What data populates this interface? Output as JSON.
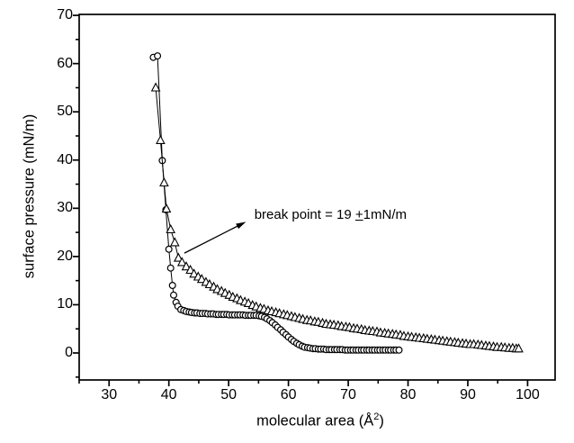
{
  "chart_data": {
    "type": "line",
    "title": "",
    "xlabel_main": "molecular area (Å",
    "xlabel_sup": "2",
    "xlabel_close": ")",
    "ylabel": "surface pressure (mN/m)",
    "xlim": [
      25,
      104.6
    ],
    "ylim": [
      -5.6,
      70.2
    ],
    "x_major_ticks": [
      30,
      40,
      50,
      60,
      70,
      80,
      90,
      100
    ],
    "x_minor_ticks": [
      25,
      35,
      45,
      55,
      65,
      75,
      85,
      95
    ],
    "y_major_ticks": [
      0,
      10,
      20,
      30,
      40,
      50,
      60,
      70
    ],
    "y_minor_ticks": [
      -5,
      5,
      15,
      25,
      35,
      45,
      55,
      65
    ],
    "grid": false,
    "legend_position": "none",
    "colors": {
      "line": "#000000",
      "marker_fill": "#ffffff",
      "background": "#ffffff"
    },
    "annotation": {
      "prefix": "break point = 19 ",
      "plusminus": "+",
      "suffix": "1mN/m",
      "arrow_tail": [
        42.6,
        20.7
      ],
      "arrow_head": [
        52.9,
        27.2
      ],
      "text_pos": [
        54.3,
        28.6
      ]
    },
    "series": [
      {
        "name": "circles",
        "marker": "circle",
        "points": [
          [
            37.4,
            61.3
          ],
          [
            38.1,
            61.6
          ],
          [
            38.9,
            39.9
          ],
          [
            39.5,
            29.7
          ],
          [
            40.0,
            21.5
          ],
          [
            40.3,
            17.6
          ],
          [
            40.6,
            14.0
          ],
          [
            40.8,
            12.0
          ],
          [
            41.2,
            10.5
          ],
          [
            41.5,
            9.7
          ],
          [
            42.0,
            9.0
          ],
          [
            42.5,
            8.8
          ],
          [
            42.9,
            8.6
          ],
          [
            43.4,
            8.5
          ],
          [
            43.8,
            8.4
          ],
          [
            44.3,
            8.3
          ],
          [
            44.7,
            8.3
          ],
          [
            45.2,
            8.2
          ],
          [
            45.6,
            8.2
          ],
          [
            46.1,
            8.2
          ],
          [
            46.5,
            8.1
          ],
          [
            47.0,
            8.1
          ],
          [
            47.4,
            8.1
          ],
          [
            47.9,
            8.0
          ],
          [
            48.3,
            8.0
          ],
          [
            48.8,
            8.0
          ],
          [
            49.2,
            8.0
          ],
          [
            49.7,
            8.0
          ],
          [
            50.1,
            7.9
          ],
          [
            50.6,
            7.9
          ],
          [
            51.0,
            7.9
          ],
          [
            51.5,
            7.9
          ],
          [
            51.9,
            7.9
          ],
          [
            52.4,
            7.9
          ],
          [
            52.8,
            7.8
          ],
          [
            53.3,
            7.8
          ],
          [
            53.7,
            7.8
          ],
          [
            54.2,
            7.8
          ],
          [
            54.6,
            7.8
          ],
          [
            55.1,
            7.7
          ],
          [
            55.5,
            7.6
          ],
          [
            56.0,
            7.4
          ],
          [
            56.4,
            7.1
          ],
          [
            56.9,
            6.7
          ],
          [
            57.3,
            6.3
          ],
          [
            57.8,
            5.8
          ],
          [
            58.2,
            5.3
          ],
          [
            58.7,
            4.8
          ],
          [
            59.1,
            4.3
          ],
          [
            59.6,
            3.8
          ],
          [
            60.0,
            3.3
          ],
          [
            60.5,
            2.8
          ],
          [
            60.9,
            2.4
          ],
          [
            61.4,
            2.0
          ],
          [
            61.8,
            1.7
          ],
          [
            62.3,
            1.4
          ],
          [
            62.7,
            1.2
          ],
          [
            63.2,
            1.1
          ],
          [
            63.6,
            1.0
          ],
          [
            64.1,
            0.9
          ],
          [
            64.5,
            0.9
          ],
          [
            65.0,
            0.8
          ],
          [
            65.4,
            0.8
          ],
          [
            65.9,
            0.8
          ],
          [
            66.3,
            0.7
          ],
          [
            66.8,
            0.7
          ],
          [
            67.2,
            0.7
          ],
          [
            67.7,
            0.7
          ],
          [
            68.1,
            0.7
          ],
          [
            68.6,
            0.7
          ],
          [
            69.0,
            0.7
          ],
          [
            69.5,
            0.6
          ],
          [
            69.9,
            0.6
          ],
          [
            70.4,
            0.6
          ],
          [
            70.8,
            0.6
          ],
          [
            71.3,
            0.6
          ],
          [
            71.7,
            0.6
          ],
          [
            72.2,
            0.6
          ],
          [
            72.6,
            0.6
          ],
          [
            73.1,
            0.6
          ],
          [
            73.5,
            0.6
          ],
          [
            74.0,
            0.6
          ],
          [
            74.4,
            0.6
          ],
          [
            74.9,
            0.6
          ],
          [
            75.3,
            0.6
          ],
          [
            75.8,
            0.6
          ],
          [
            76.2,
            0.6
          ],
          [
            76.7,
            0.6
          ],
          [
            77.1,
            0.6
          ],
          [
            77.6,
            0.6
          ],
          [
            78.0,
            0.6
          ],
          [
            78.5,
            0.6
          ]
        ]
      },
      {
        "name": "triangles",
        "marker": "triangle",
        "points": [
          [
            37.8,
            55.0
          ],
          [
            38.6,
            44.1
          ],
          [
            39.2,
            35.3
          ],
          [
            39.6,
            29.9
          ],
          [
            40.3,
            25.6
          ],
          [
            41.0,
            22.9
          ],
          [
            41.6,
            19.7
          ],
          [
            42.2,
            18.8
          ],
          [
            42.9,
            17.9
          ],
          [
            43.6,
            17.2
          ],
          [
            44.2,
            16.4
          ],
          [
            44.9,
            15.8
          ],
          [
            45.5,
            15.3
          ],
          [
            46.2,
            14.7
          ],
          [
            46.8,
            14.2
          ],
          [
            47.5,
            13.7
          ],
          [
            48.1,
            13.2
          ],
          [
            48.8,
            12.8
          ],
          [
            49.4,
            12.4
          ],
          [
            50.1,
            12.0
          ],
          [
            50.7,
            11.6
          ],
          [
            51.4,
            11.3
          ],
          [
            52.0,
            10.9
          ],
          [
            52.7,
            10.6
          ],
          [
            53.3,
            10.3
          ],
          [
            54.0,
            9.9
          ],
          [
            54.6,
            9.6
          ],
          [
            55.3,
            9.3
          ],
          [
            55.9,
            9.1
          ],
          [
            56.6,
            8.8
          ],
          [
            57.2,
            8.6
          ],
          [
            57.9,
            8.4
          ],
          [
            58.5,
            8.2
          ],
          [
            59.2,
            8.0
          ],
          [
            59.8,
            7.8
          ],
          [
            60.5,
            7.6
          ],
          [
            61.1,
            7.4
          ],
          [
            61.8,
            7.2
          ],
          [
            62.4,
            7.0
          ],
          [
            63.1,
            6.8
          ],
          [
            63.7,
            6.7
          ],
          [
            64.4,
            6.5
          ],
          [
            65.0,
            6.4
          ],
          [
            65.7,
            6.2
          ],
          [
            66.3,
            6.0
          ],
          [
            67.0,
            5.9
          ],
          [
            67.6,
            5.8
          ],
          [
            68.3,
            5.7
          ],
          [
            68.9,
            5.5
          ],
          [
            69.6,
            5.4
          ],
          [
            70.2,
            5.3
          ],
          [
            70.9,
            5.1
          ],
          [
            71.5,
            5.0
          ],
          [
            72.2,
            4.9
          ],
          [
            72.8,
            4.7
          ],
          [
            73.5,
            4.6
          ],
          [
            74.1,
            4.5
          ],
          [
            74.8,
            4.4
          ],
          [
            75.4,
            4.2
          ],
          [
            76.1,
            4.1
          ],
          [
            76.7,
            4.0
          ],
          [
            77.4,
            3.9
          ],
          [
            78.0,
            3.8
          ],
          [
            78.7,
            3.7
          ],
          [
            79.3,
            3.5
          ],
          [
            80.0,
            3.4
          ],
          [
            80.6,
            3.3
          ],
          [
            81.3,
            3.2
          ],
          [
            81.9,
            3.1
          ],
          [
            82.6,
            3.0
          ],
          [
            83.2,
            2.9
          ],
          [
            83.9,
            2.8
          ],
          [
            84.5,
            2.7
          ],
          [
            85.2,
            2.6
          ],
          [
            85.8,
            2.5
          ],
          [
            86.5,
            2.4
          ],
          [
            87.1,
            2.3
          ],
          [
            87.8,
            2.2
          ],
          [
            88.4,
            2.1
          ],
          [
            89.1,
            2.0
          ],
          [
            89.7,
            1.9
          ],
          [
            90.4,
            1.8
          ],
          [
            91.0,
            1.8
          ],
          [
            91.7,
            1.7
          ],
          [
            92.3,
            1.6
          ],
          [
            93.0,
            1.5
          ],
          [
            93.6,
            1.4
          ],
          [
            94.3,
            1.3
          ],
          [
            94.9,
            1.2
          ],
          [
            95.6,
            1.2
          ],
          [
            96.2,
            1.1
          ],
          [
            96.9,
            1.0
          ],
          [
            97.5,
            1.0
          ],
          [
            98.1,
            0.9
          ],
          [
            98.5,
            0.9
          ]
        ]
      }
    ]
  }
}
